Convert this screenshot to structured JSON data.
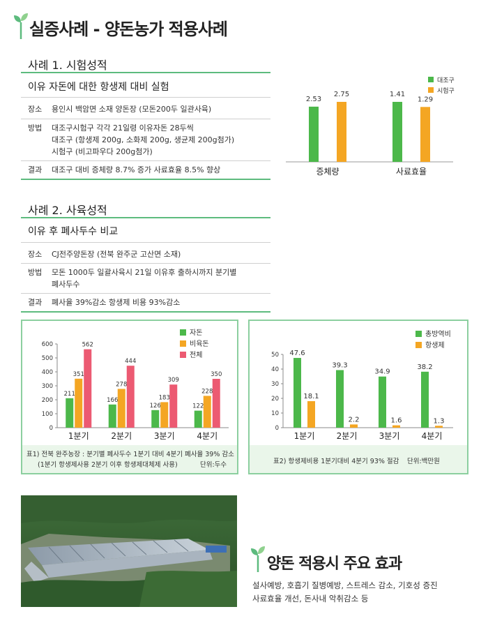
{
  "title": "실증사례 - 양돈농가 적용사례",
  "case1": {
    "heading": "사례 1. 시험성적",
    "subheading": "이유 자돈에 대한 항생제 대비 실험",
    "place_label": "장소",
    "place": "용인시 백암면 소재 양돈장 (모돈200두 일관사육)",
    "method_label": "방법",
    "method_lines": [
      "대조구시험구 각각 21일령 이유자돈 28두씩",
      "대조구 (항생제 200g, 소화제 200g, 생균제 200g첨가)",
      "시험구 (비고파우다 200g첨가)"
    ],
    "result_label": "결과",
    "result": "대조구 대비 증체량 8.7% 증가 사료효율 8.5% 향상"
  },
  "case2": {
    "heading": "사례 2. 사육성적",
    "subheading": "이유 후 폐사두수 비교",
    "place_label": "장소",
    "place": "CJ전주양돈장 (전북 완주군 고산면 소재)",
    "method_label": "방법",
    "method_lines": [
      "모돈 1000두 일괄사육시 21일 이유후 출하시까지 분기별",
      "폐사두수"
    ],
    "result_label": "결과",
    "result": "폐사율 39%감소 항생제 비용 93%감소"
  },
  "captions": {
    "table1_line1": "표1) 전북 완주농장 : 분기별 폐사두수 1분기 대비 4분기 폐사율 39% 감소",
    "table1_line2": "(1분기 항생제사용 2분기 이후 항생제대체제 사용)",
    "table1_unit": "단위:두수",
    "table2_line1": "표2) 항생제비용 1분기대비 4분기 93% 절감",
    "table2_unit": "단위:백만원"
  },
  "effects": {
    "title": "양돈 적용시 주요 효과",
    "line1": "설사예방, 호흡기 질병예방, 스트레스 감소, 기호성 증진",
    "line2": "사료효율 개선, 돈사내 악취감소 등"
  },
  "colors": {
    "green": "#4cb84a",
    "orange": "#f4a623",
    "pink": "#ec5a72",
    "accent": "#5dbb7e"
  },
  "chart_data": [
    {
      "type": "bar",
      "categories": [
        "증체량",
        "사료효율"
      ],
      "series": [
        {
          "name": "대조구",
          "values": [
            2.53,
            1.41
          ],
          "labels": [
            "2.53",
            "1.41"
          ],
          "color": "#4cb84a"
        },
        {
          "name": "시험구",
          "values": [
            2.75,
            1.29
          ],
          "labels": [
            "2.75",
            "1.29"
          ],
          "color": "#f4a623"
        }
      ],
      "legend": "top-right"
    },
    {
      "type": "bar",
      "categories": [
        "1분기",
        "2분기",
        "3분기",
        "4분기"
      ],
      "series": [
        {
          "name": "자돈",
          "values": [
            211,
            166,
            126,
            122
          ],
          "color": "#4cb84a"
        },
        {
          "name": "비육돈",
          "values": [
            351,
            278,
            183,
            228
          ],
          "color": "#f4a623"
        },
        {
          "name": "전체",
          "values": [
            562,
            444,
            309,
            350
          ],
          "color": "#ec5a72"
        }
      ],
      "yticks": [
        0,
        100,
        200,
        300,
        400,
        500,
        600
      ],
      "ylim": [
        0,
        600
      ],
      "legend": "top-right"
    },
    {
      "type": "bar",
      "categories": [
        "1분기",
        "2분기",
        "3분기",
        "4분기"
      ],
      "series": [
        {
          "name": "총방역비",
          "values": [
            47.6,
            39.3,
            34.9,
            38.2
          ],
          "color": "#4cb84a"
        },
        {
          "name": "항생제",
          "values": [
            18.1,
            2.2,
            1.6,
            1.3
          ],
          "color": "#f4a623"
        }
      ],
      "yticks": [
        0,
        10,
        20,
        30,
        40,
        50
      ],
      "ylim": [
        0,
        50
      ],
      "legend": "top-right"
    }
  ]
}
